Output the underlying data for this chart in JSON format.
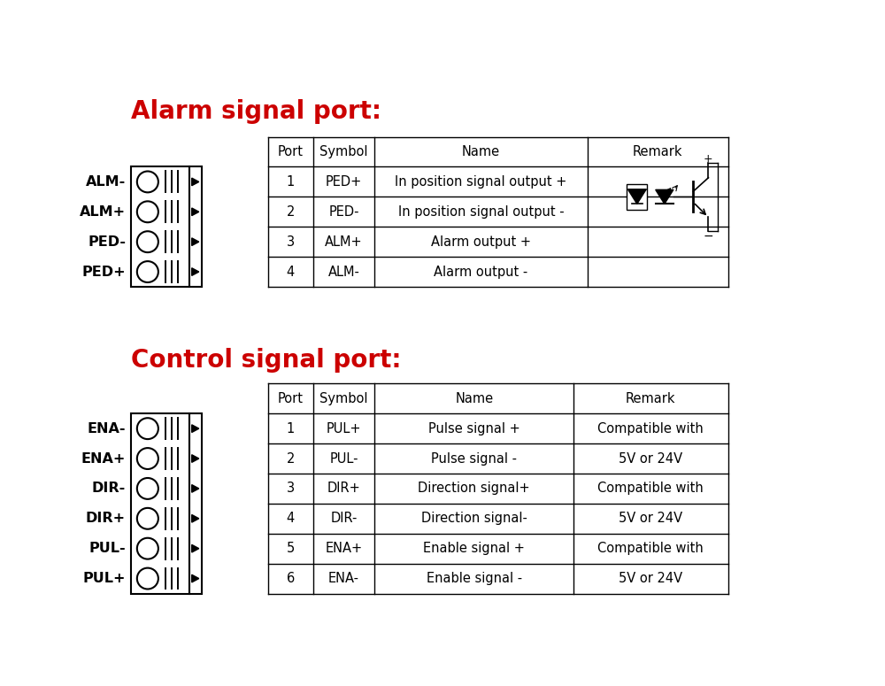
{
  "bg_color": "#ffffff",
  "title1": "Alarm signal port:",
  "title2": "Control signal port:",
  "title_color": "#cc0000",
  "title_fontsize": 20,
  "alarm_labels": [
    "ALM-",
    "ALM+",
    "PED-",
    "PED+"
  ],
  "control_labels": [
    "ENA-",
    "ENA+",
    "DIR-",
    "DIR+",
    "PUL-",
    "PUL+"
  ],
  "alarm_table_headers": [
    "Port",
    "Symbol",
    "Name",
    "Remark"
  ],
  "alarm_table_data": [
    [
      "1",
      "PED+",
      "In position signal output +",
      ""
    ],
    [
      "2",
      "PED-",
      "In position signal output -",
      ""
    ],
    [
      "3",
      "ALM+",
      "Alarm output +",
      ""
    ],
    [
      "4",
      "ALM-",
      "Alarm output -",
      ""
    ]
  ],
  "control_table_headers": [
    "Port",
    "Symbol",
    "Name",
    "Remark"
  ],
  "control_table_data": [
    [
      "1",
      "PUL+",
      "Pulse signal +",
      "Compatible with"
    ],
    [
      "2",
      "PUL-",
      "Pulse signal -",
      "5V or 24V"
    ],
    [
      "3",
      "DIR+",
      "Direction signal+",
      "Compatible with"
    ],
    [
      "4",
      "DIR-",
      "Direction signal-",
      "5V or 24V"
    ],
    [
      "5",
      "ENA+",
      "Enable signal +",
      "Compatible with"
    ],
    [
      "6",
      "ENA-",
      "Enable signal -",
      "5V or 24V"
    ]
  ],
  "table_fontsize": 10.5,
  "label_fontsize": 11.5
}
